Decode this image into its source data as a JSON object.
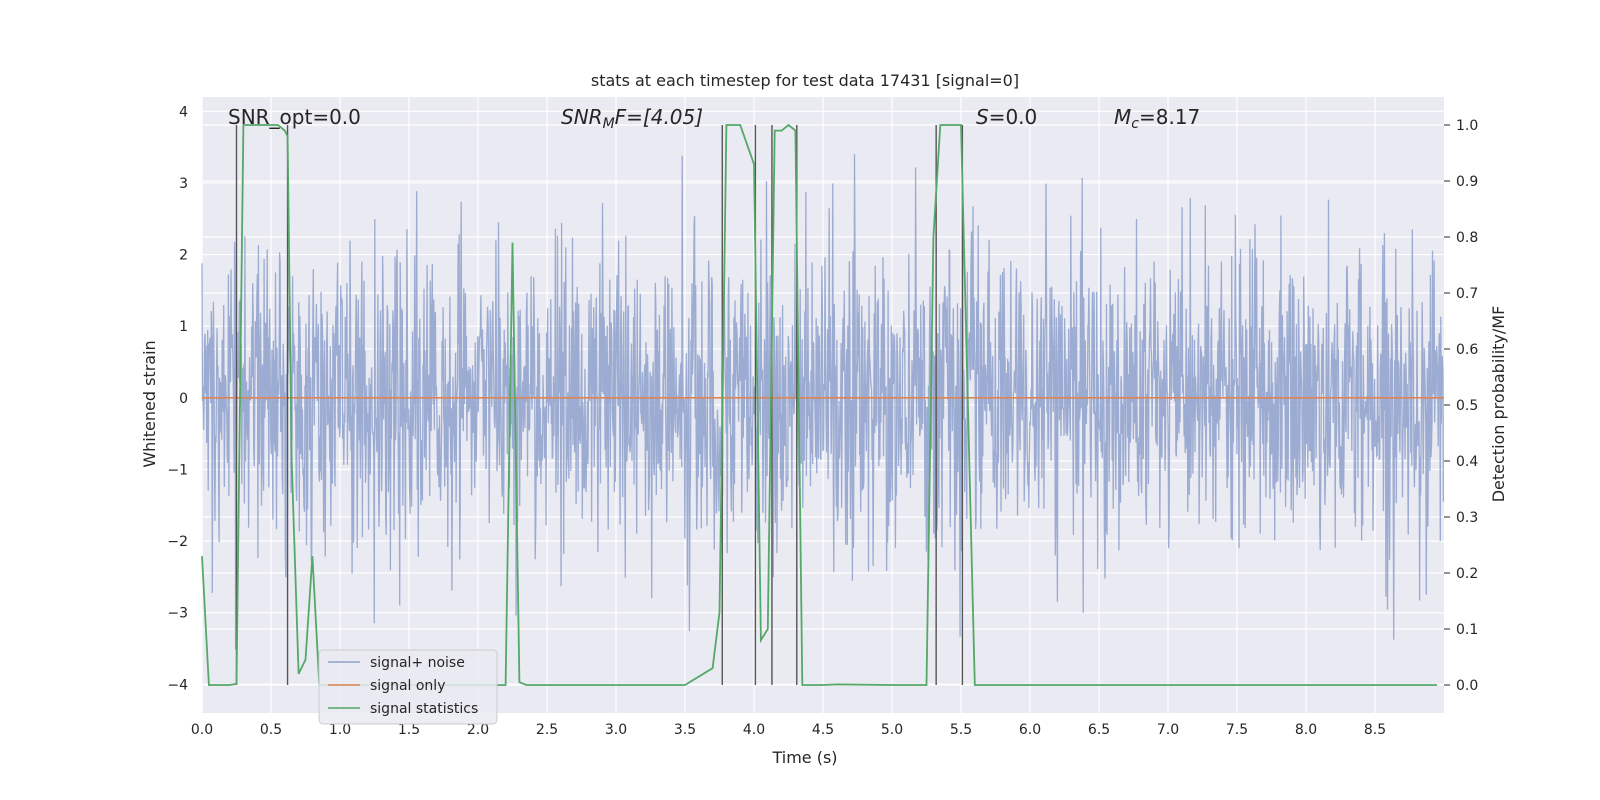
{
  "chart_data": {
    "type": "line",
    "title": "stats at each timestep for test data 17431 [signal=0]",
    "xlabel": "Time (s)",
    "ylabel": "Whitened strain",
    "y2label": "Detection probability/MF",
    "xlim": [
      0,
      9.0
    ],
    "ylim": [
      -4.4,
      4.2
    ],
    "y2lim": [
      -0.05,
      1.05
    ],
    "xticks": [
      0.0,
      0.5,
      1.0,
      1.5,
      2.0,
      2.5,
      3.0,
      3.5,
      4.0,
      4.5,
      5.0,
      5.5,
      6.0,
      6.5,
      7.0,
      7.5,
      8.0,
      8.5
    ],
    "xtick_labels": [
      "0.0",
      "0.5",
      "1.0",
      "1.5",
      "2.0",
      "2.5",
      "3.0",
      "3.5",
      "4.0",
      "4.5",
      "5.0",
      "5.5",
      "6.0",
      "6.5",
      "7.0",
      "7.5",
      "8.0",
      "8.5"
    ],
    "yticks": [
      4,
      3,
      2,
      1,
      0,
      -1,
      -2,
      -3,
      -4
    ],
    "ytick_labels": [
      "4",
      "3",
      "2",
      "1",
      "0",
      "−1",
      "−2",
      "−3",
      "−4"
    ],
    "y2ticks": [
      1.0,
      0.9,
      0.8,
      0.7,
      0.6,
      0.5,
      0.4,
      0.3,
      0.2,
      0.1,
      0.0
    ],
    "y2tick_labels": [
      "1.0",
      "0.9",
      "0.8",
      "0.7",
      "0.6",
      "0.5",
      "0.4",
      "0.3",
      "0.2",
      "0.1",
      "0.0"
    ],
    "grid": true,
    "legend_position": "lower-left",
    "legend": [
      {
        "name": "signal+ noise",
        "color": "#8da0cb"
      },
      {
        "name": "signal only",
        "color": "#dd8452"
      },
      {
        "name": "signal statistics",
        "color": "#55a868"
      }
    ],
    "annotations": {
      "snr_opt": "SNR_opt=0.0",
      "snr_mf_prefix": "SNR",
      "snr_mf_sub": "M",
      "snr_mf_suffix": "F=[4.05]",
      "s_prefix": "S",
      "s_suffix": "=0.0",
      "mc_prefix": "M",
      "mc_sub": "c",
      "mc_suffix": "=8.17"
    },
    "series": [
      {
        "name": "signal+ noise",
        "axis": "left",
        "description": "whitened noisy strain, approximately Gaussian noise with amplitude about 1",
        "amplitude_std": 1.0
      },
      {
        "name": "signal only",
        "axis": "left",
        "x": [
          0.0,
          9.0
        ],
        "y": [
          0.0,
          0.0
        ]
      },
      {
        "name": "signal statistics",
        "axis": "right",
        "x": [
          0.0,
          0.05,
          0.1,
          0.15,
          0.2,
          0.25,
          0.3,
          0.35,
          0.4,
          0.45,
          0.5,
          0.55,
          0.6,
          0.62,
          0.65,
          0.7,
          0.75,
          0.8,
          0.85,
          0.9,
          0.95,
          1.0,
          1.5,
          2.0,
          2.1,
          2.2,
          2.25,
          2.3,
          2.35,
          2.4,
          3.0,
          3.5,
          3.7,
          3.75,
          3.8,
          3.85,
          3.9,
          4.0,
          4.05,
          4.1,
          4.15,
          4.2,
          4.25,
          4.3,
          4.35,
          4.4,
          4.5,
          4.6,
          5.0,
          5.25,
          5.3,
          5.35,
          5.4,
          5.45,
          5.5,
          5.6,
          6.0,
          7.0,
          8.0,
          8.95
        ],
        "y": [
          0.23,
          0.0,
          0.0,
          0.0,
          0.0,
          0.002,
          1.0,
          1.0,
          1.0,
          1.0,
          1.0,
          1.0,
          0.99,
          0.98,
          0.4,
          0.02,
          0.045,
          0.23,
          0.0,
          0.0,
          0.0,
          0.0,
          0.0,
          0.0,
          0.0,
          0.0,
          0.79,
          0.005,
          0.0,
          0.0,
          0.0,
          0.0,
          0.03,
          0.13,
          1.0,
          1.0,
          1.0,
          0.93,
          0.08,
          0.1,
          0.99,
          0.99,
          1.0,
          0.99,
          0.0,
          0.0,
          0.0,
          0.001,
          0.0,
          0.0,
          0.8,
          1.0,
          1.0,
          1.0,
          1.0,
          0.0,
          0.0,
          0.0,
          0.0,
          0.0
        ]
      }
    ],
    "vertical_lines": {
      "color": "#555555",
      "x": [
        0.25,
        0.62,
        3.77,
        4.01,
        4.13,
        4.31,
        5.32,
        5.51
      ]
    }
  }
}
